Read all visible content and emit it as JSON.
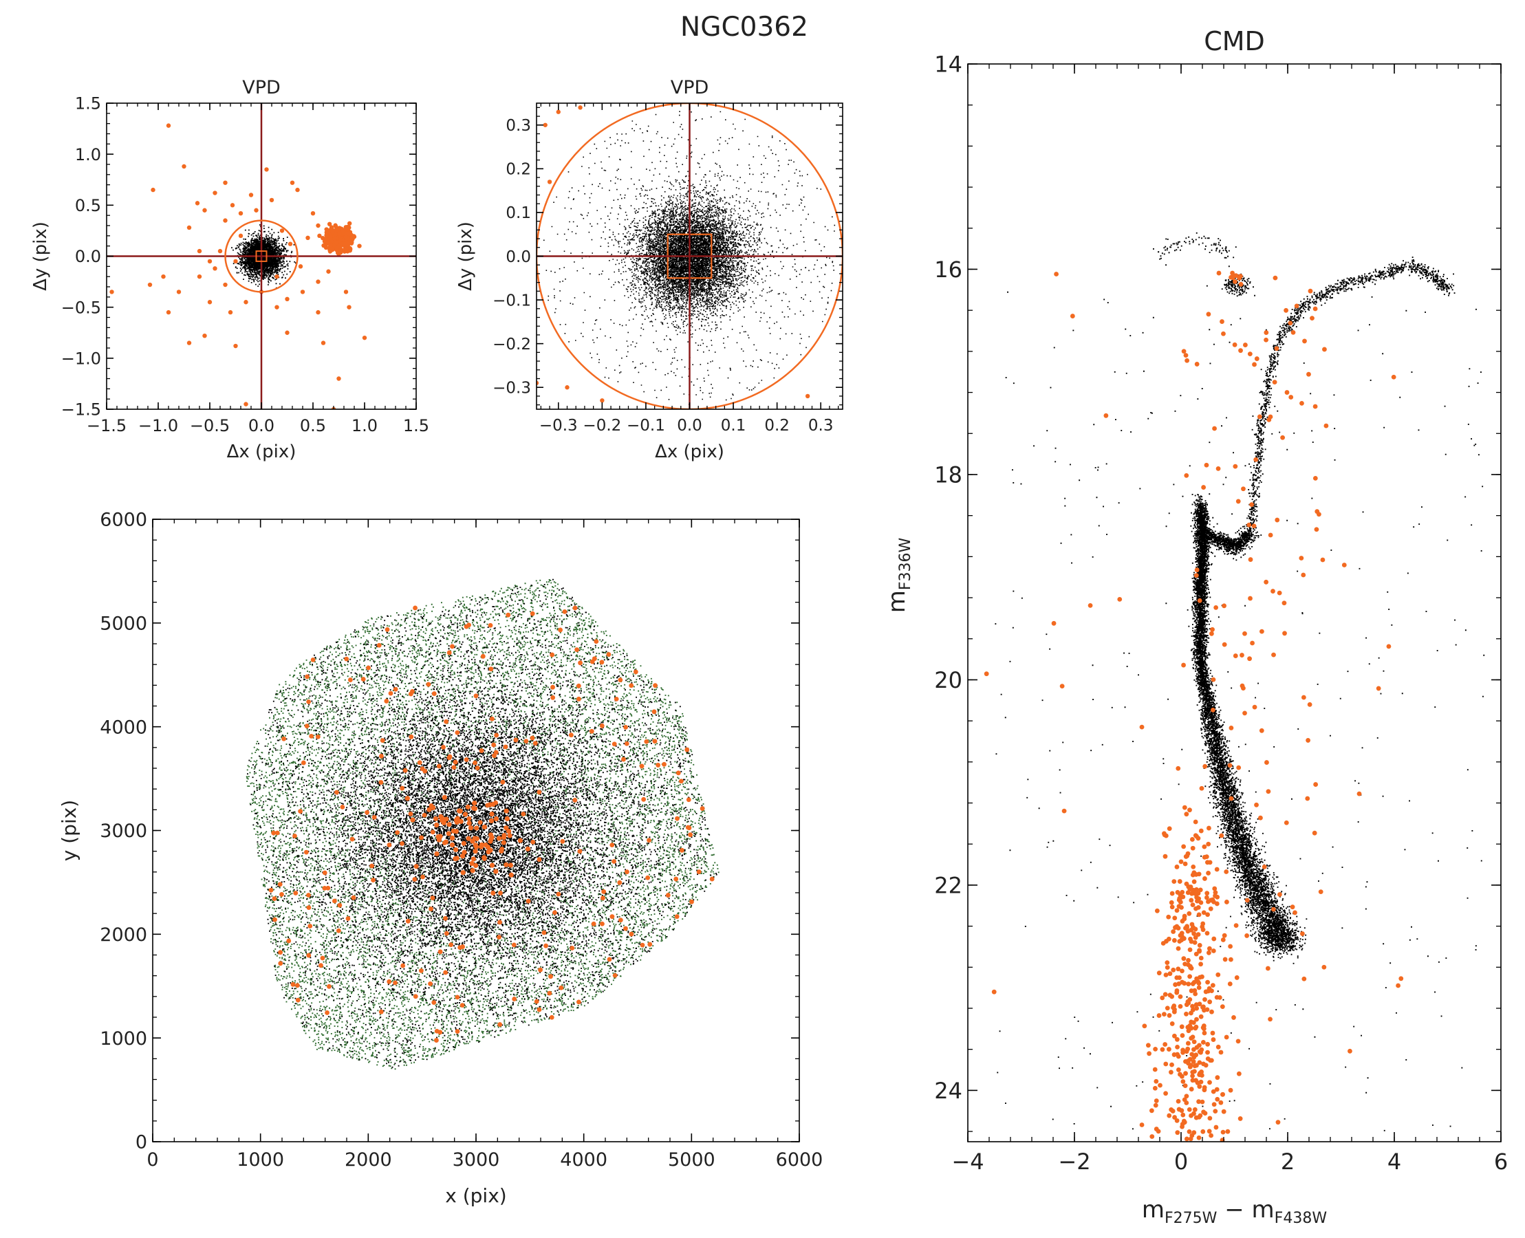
{
  "figure": {
    "title": "NGC0362"
  },
  "colors": {
    "accent": "#f26a21",
    "line": "#8b1a1a",
    "member": "#000000",
    "field_green": "#2f6b2f",
    "axis": "#000000"
  },
  "chart_data": [
    {
      "id": "vpd_wide",
      "type": "scatter",
      "title": "VPD",
      "xlabel": "Δx (pix)",
      "ylabel": "Δy (pix)",
      "xlim": [
        -1.5,
        1.5
      ],
      "ylim": [
        -1.5,
        1.5
      ],
      "xticks": [
        -1.5,
        -1.0,
        -0.5,
        0.0,
        0.5,
        1.0,
        1.5
      ],
      "yticks": [
        -1.5,
        -1.0,
        -0.5,
        0.0,
        0.5,
        1.0,
        1.5
      ],
      "xtick_labels": [
        "−1.5",
        "−1.0",
        "−0.5",
        "0.0",
        "0.5",
        "1.0",
        "1.5"
      ],
      "ytick_labels": [
        "−1.5",
        "−1.0",
        "−0.5",
        "0.0",
        "0.5",
        "1.0",
        "1.5"
      ],
      "reference_lines": {
        "x": 0.0,
        "y": 0.0
      },
      "selection_circle_radius": 0.35,
      "inner_box_halfwidth": 0.05,
      "series": [
        {
          "role": "cluster members",
          "color": "#000000",
          "distribution": "gaussian",
          "center": [
            0.0,
            0.0
          ],
          "sigma": [
            0.09,
            0.09
          ]
        },
        {
          "role": "field (SMC) clump",
          "color": "#f26a21",
          "distribution": "gaussian",
          "center": [
            0.75,
            0.17
          ],
          "sigma": [
            0.06,
            0.05
          ]
        },
        {
          "role": "rejected stars",
          "color": "#f26a21",
          "points": [
            [
              -0.9,
              1.28
            ],
            [
              -0.75,
              0.88
            ],
            [
              -1.05,
              0.65
            ],
            [
              -0.62,
              0.52
            ],
            [
              -0.55,
              0.45
            ],
            [
              -0.45,
              0.62
            ],
            [
              -0.35,
              0.72
            ],
            [
              -0.28,
              0.5
            ],
            [
              -0.2,
              0.42
            ],
            [
              0.1,
              0.55
            ],
            [
              0.3,
              0.72
            ],
            [
              0.35,
              0.65
            ],
            [
              0.5,
              0.42
            ],
            [
              0.55,
              0.3
            ],
            [
              0.2,
              0.25
            ],
            [
              0.28,
              0.12
            ],
            [
              -0.4,
              0.05
            ],
            [
              -0.5,
              -0.05
            ],
            [
              -0.45,
              -0.12
            ],
            [
              -0.35,
              -0.28
            ],
            [
              -0.6,
              -0.2
            ],
            [
              -0.95,
              -0.2
            ],
            [
              -1.08,
              -0.28
            ],
            [
              -0.8,
              -0.35
            ],
            [
              -0.9,
              -0.55
            ],
            [
              -0.7,
              -0.85
            ],
            [
              -0.55,
              -0.78
            ],
            [
              -0.5,
              -0.45
            ],
            [
              -0.3,
              -0.55
            ],
            [
              -0.15,
              -0.45
            ],
            [
              0.0,
              -0.35
            ],
            [
              0.15,
              -0.5
            ],
            [
              0.25,
              -0.42
            ],
            [
              0.4,
              -0.35
            ],
            [
              0.55,
              -0.25
            ],
            [
              0.55,
              -0.55
            ],
            [
              0.6,
              -0.85
            ],
            [
              0.85,
              -0.5
            ],
            [
              1.0,
              -0.8
            ],
            [
              0.75,
              -1.2
            ],
            [
              0.7,
              -1.5
            ],
            [
              -0.15,
              -1.45
            ],
            [
              -1.45,
              -0.35
            ],
            [
              0.05,
              0.85
            ],
            [
              -0.1,
              0.6
            ],
            [
              0.45,
              0.18
            ],
            [
              -0.25,
              -0.05
            ],
            [
              0.38,
              -0.1
            ],
            [
              -0.2,
              0.2
            ],
            [
              0.15,
              -0.2
            ],
            [
              -0.05,
              0.45
            ],
            [
              0.65,
              -0.15
            ],
            [
              0.95,
              0.1
            ],
            [
              -0.7,
              0.28
            ],
            [
              -0.6,
              0.05
            ],
            [
              0.82,
              -0.35
            ],
            [
              -0.35,
              0.35
            ],
            [
              0.25,
              -0.75
            ],
            [
              -0.25,
              -0.88
            ]
          ]
        }
      ]
    },
    {
      "id": "vpd_zoom",
      "type": "scatter",
      "title": "VPD",
      "xlabel": "Δx (pix)",
      "ylabel": "Δy (pix)",
      "xlim": [
        -0.35,
        0.35
      ],
      "ylim": [
        -0.35,
        0.35
      ],
      "xticks": [
        -0.3,
        -0.2,
        -0.1,
        0.0,
        0.1,
        0.2,
        0.3
      ],
      "yticks": [
        -0.3,
        -0.2,
        -0.1,
        0.0,
        0.1,
        0.2,
        0.3
      ],
      "xtick_labels": [
        "−0.3",
        "−0.2",
        "−0.1",
        "0.0",
        "0.1",
        "0.2",
        "0.3"
      ],
      "ytick_labels": [
        "−0.3",
        "−0.2",
        "−0.1",
        "0.0",
        "0.1",
        "0.2",
        "0.3"
      ],
      "reference_lines": {
        "x": 0.0,
        "y": 0.0
      },
      "selection_circle_radius": 0.35,
      "inner_box_halfwidth": 0.05,
      "series": [
        {
          "role": "cluster members",
          "color": "#000000",
          "distribution": "gaussian",
          "center": [
            0.0,
            0.0
          ],
          "sigma": [
            0.06,
            0.06
          ]
        },
        {
          "role": "rejected stars",
          "color": "#f26a21",
          "points": [
            [
              -0.33,
              0.3
            ],
            [
              -0.3,
              0.33
            ],
            [
              -0.32,
              0.17
            ],
            [
              -0.35,
              -0.29
            ],
            [
              -0.28,
              -0.3
            ],
            [
              -0.2,
              -0.33
            ],
            [
              0.27,
              -0.32
            ],
            [
              -0.25,
              0.34
            ]
          ]
        }
      ]
    },
    {
      "id": "spatial",
      "type": "scatter",
      "xlabel": "x (pix)",
      "ylabel": "y (pix)",
      "xlim": [
        0,
        6000
      ],
      "ylim": [
        0,
        6000
      ],
      "xticks": [
        0,
        1000,
        2000,
        3000,
        4000,
        5000,
        6000
      ],
      "yticks": [
        0,
        1000,
        2000,
        3000,
        4000,
        5000,
        6000
      ],
      "xtick_labels": [
        "0",
        "1000",
        "2000",
        "3000",
        "4000",
        "5000",
        "6000"
      ],
      "ytick_labels": [
        "0",
        "1000",
        "2000",
        "3000",
        "4000",
        "5000",
        "6000"
      ],
      "field_footprint": [
        [
          3700,
          5450
        ],
        [
          4900,
          4200
        ],
        [
          5250,
          2600
        ],
        [
          4800,
          2000
        ],
        [
          4000,
          1300
        ],
        [
          2250,
          700
        ],
        [
          1500,
          900
        ],
        [
          1150,
          1500
        ],
        [
          850,
          3600
        ],
        [
          1200,
          4500
        ],
        [
          2000,
          5050
        ]
      ],
      "field_center": [
        3000,
        3000
      ],
      "series": [
        {
          "role": "all stars (field)",
          "color": "#2f6b2f"
        },
        {
          "role": "cluster members",
          "color": "#000000",
          "distribution": "concentrated",
          "center": [
            3000,
            3000
          ]
        },
        {
          "role": "rejected stars",
          "color": "#f26a21",
          "distribution": "scattered, concentrated near center",
          "center_clump": [
            2950,
            2950
          ]
        }
      ]
    },
    {
      "id": "cmd",
      "type": "scatter",
      "title": "CMD",
      "xlabel_parts": [
        "m",
        "F275W",
        " − m",
        "F438W"
      ],
      "ylabel_parts": [
        "m",
        "F336W"
      ],
      "xlim": [
        -4,
        6
      ],
      "ylim": [
        24.5,
        14
      ],
      "xticks": [
        -4,
        -2,
        0,
        2,
        4,
        6
      ],
      "yticks": [
        14,
        16,
        18,
        20,
        22,
        24
      ],
      "xtick_labels": [
        "−4",
        "−2",
        "0",
        "2",
        "4",
        "6"
      ],
      "ytick_labels": [
        "14",
        "16",
        "18",
        "20",
        "22",
        "24"
      ],
      "sequences": {
        "main_sequence_ridge": [
          [
            0.35,
            18.3
          ],
          [
            0.4,
            18.7
          ],
          [
            0.35,
            19.2
          ],
          [
            0.35,
            19.8
          ],
          [
            0.55,
            20.4
          ],
          [
            0.8,
            21.0
          ],
          [
            1.05,
            21.5
          ],
          [
            1.35,
            21.95
          ],
          [
            1.7,
            22.35
          ],
          [
            1.9,
            22.6
          ]
        ],
        "subgiant_branch": [
          [
            0.4,
            18.55
          ],
          [
            0.75,
            18.65
          ],
          [
            1.05,
            18.7
          ],
          [
            1.3,
            18.55
          ]
        ],
        "red_giant_branch": [
          [
            1.3,
            18.55
          ],
          [
            1.4,
            18.0
          ],
          [
            1.5,
            17.5
          ],
          [
            1.65,
            17.0
          ],
          [
            1.9,
            16.6
          ],
          [
            2.3,
            16.35
          ],
          [
            3.0,
            16.15
          ],
          [
            3.7,
            16.05
          ],
          [
            4.3,
            15.95
          ],
          [
            4.7,
            16.05
          ],
          [
            5.0,
            16.2
          ]
        ],
        "horizontal_branch": [
          [
            -0.4,
            15.85
          ],
          [
            -0.1,
            15.75
          ],
          [
            0.3,
            15.7
          ],
          [
            0.7,
            15.75
          ],
          [
            1.0,
            15.9
          ]
        ],
        "red_clump_center": [
          1.05,
          16.15
        ]
      },
      "series": [
        {
          "role": "cluster members",
          "color": "#000000"
        },
        {
          "role": "rejected stars",
          "color": "#f26a21"
        }
      ]
    }
  ]
}
